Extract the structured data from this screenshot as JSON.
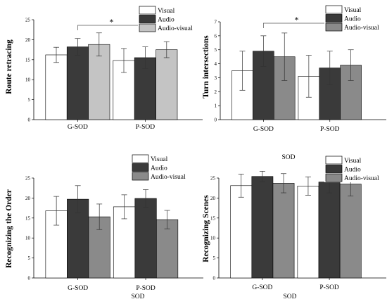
{
  "chart_data": [
    {
      "type": "bar",
      "ylabel": "Route retracing",
      "xlabel": "SOD",
      "categories": [
        "G-SOD",
        "P-SOD"
      ],
      "ylim": [
        0,
        25
      ],
      "yticks": [
        0,
        5,
        10,
        15,
        20,
        25
      ],
      "legend_position": "top-right",
      "colors": [
        "#ffffff",
        "#3a3a3a",
        "#c4c4c4"
      ],
      "series": [
        {
          "name": "Visual",
          "values": [
            16.2,
            14.8
          ],
          "errors": [
            1.9,
            3.0
          ]
        },
        {
          "name": "Audio",
          "values": [
            18.2,
            15.5
          ],
          "errors": [
            2.1,
            2.7
          ]
        },
        {
          "name": "Audio-visual",
          "values": [
            18.8,
            17.5
          ],
          "errors": [
            2.9,
            2.0
          ]
        }
      ],
      "significance": {
        "label": "*",
        "between": [
          "G-SOD",
          "P-SOD"
        ]
      }
    },
    {
      "type": "bar",
      "ylabel": "Turn intersections",
      "xlabel": "SOD",
      "categories": [
        "G-SOD",
        "P-SOD"
      ],
      "ylim": [
        0,
        7
      ],
      "yticks": [
        0,
        1,
        2,
        3,
        4,
        5,
        6,
        7
      ],
      "legend_position": "top-right",
      "colors": [
        "#ffffff",
        "#3a3a3a",
        "#8a8a8a"
      ],
      "series": [
        {
          "name": "Visual",
          "values": [
            3.5,
            3.1
          ],
          "errors": [
            1.4,
            1.5
          ]
        },
        {
          "name": "Audio",
          "values": [
            4.9,
            3.7
          ],
          "errors": [
            1.1,
            1.2
          ]
        },
        {
          "name": "Audio-visual",
          "values": [
            4.5,
            3.9
          ],
          "errors": [
            1.7,
            1.1
          ]
        }
      ],
      "significance": {
        "label": "*",
        "between": [
          "G-SOD",
          "P-SOD"
        ]
      }
    },
    {
      "type": "bar",
      "ylabel": "Recognizing the Order",
      "xlabel": "SOD",
      "categories": [
        "G-SOD",
        "P-SOD"
      ],
      "ylim": [
        0,
        25
      ],
      "yticks": [
        0,
        5,
        10,
        15,
        20,
        25
      ],
      "legend_position": "top-right",
      "colors": [
        "#ffffff",
        "#3a3a3a",
        "#8a8a8a"
      ],
      "series": [
        {
          "name": "Visual",
          "values": [
            16.8,
            17.8
          ],
          "errors": [
            3.6,
            3.0
          ]
        },
        {
          "name": "Audio",
          "values": [
            19.7,
            19.9
          ],
          "errors": [
            3.4,
            2.2
          ]
        },
        {
          "name": "Audio-visual",
          "values": [
            15.3,
            14.6
          ],
          "errors": [
            3.2,
            2.3
          ]
        }
      ]
    },
    {
      "type": "bar",
      "ylabel": "Recognizing Scenes",
      "xlabel": "SOD",
      "categories": [
        "G-SOD",
        "P-SOD"
      ],
      "ylim": [
        0,
        25
      ],
      "yticks": [
        0,
        5,
        10,
        15,
        20,
        25
      ],
      "legend_position": "top-right",
      "colors": [
        "#ffffff",
        "#3a3a3a",
        "#8a8a8a"
      ],
      "series": [
        {
          "name": "Visual",
          "values": [
            23.1,
            23.0
          ],
          "errors": [
            2.9,
            2.3
          ]
        },
        {
          "name": "Audio",
          "values": [
            25.4,
            24.0
          ],
          "errors": [
            1.3,
            2.7
          ]
        },
        {
          "name": "Audio-visual",
          "values": [
            23.7,
            23.5
          ],
          "errors": [
            2.4,
            3.0
          ]
        }
      ]
    }
  ]
}
